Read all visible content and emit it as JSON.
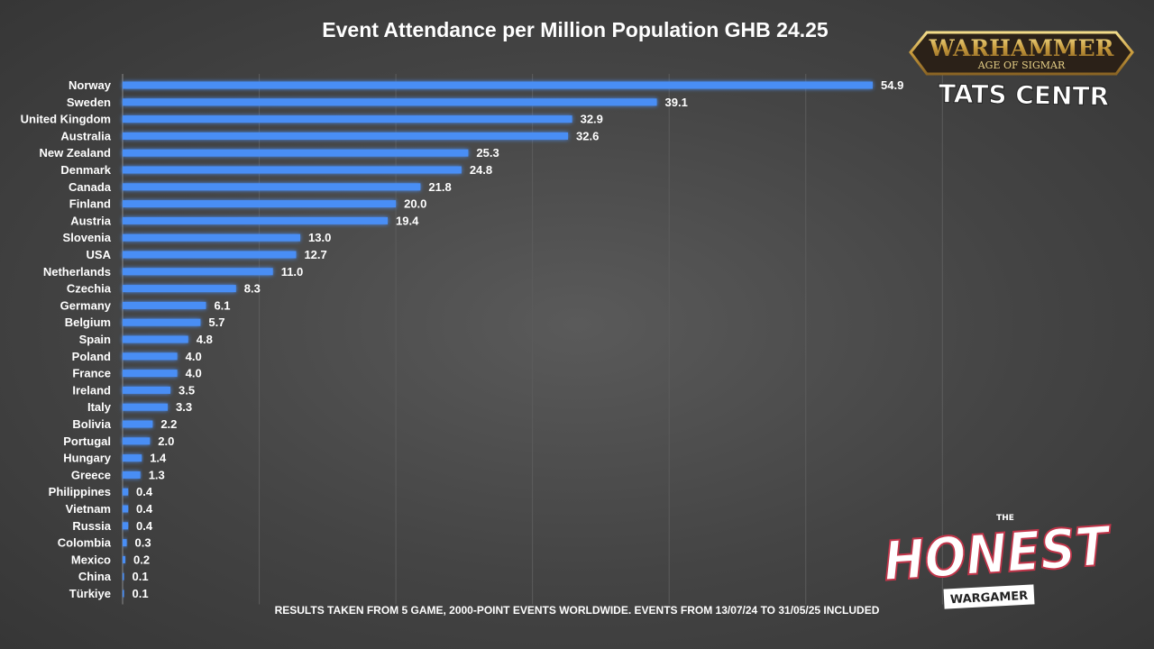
{
  "chart_data": {
    "type": "bar",
    "orientation": "horizontal",
    "title": "Event Attendance per Million Population GHB 24.25",
    "xlabel": "",
    "ylabel": "",
    "xlim": [
      0,
      60
    ],
    "grid": true,
    "bar_color": "#4a8ef5",
    "categories": [
      "Norway",
      "Sweden",
      "United Kingdom",
      "Australia",
      "New Zealand",
      "Denmark",
      "Canada",
      "Finland",
      "Austria",
      "Slovenia",
      "USA",
      "Netherlands",
      "Czechia",
      "Germany",
      "Belgium",
      "Spain",
      "Poland",
      "France",
      "Ireland",
      "Italy",
      "Bolivia",
      "Portugal",
      "Hungary",
      "Greece",
      "Philippines",
      "Vietnam",
      "Russia",
      "Colombia",
      "Mexico",
      "China",
      "Türkiye"
    ],
    "values": [
      54.9,
      39.1,
      32.9,
      32.6,
      25.3,
      24.8,
      21.8,
      20.0,
      19.4,
      13.0,
      12.7,
      11.0,
      8.3,
      6.1,
      5.7,
      4.8,
      4.0,
      4.0,
      3.5,
      3.3,
      2.2,
      2.0,
      1.4,
      1.3,
      0.4,
      0.4,
      0.4,
      0.3,
      0.2,
      0.1,
      0.1
    ],
    "value_labels": [
      "54.9",
      "39.1",
      "32.9",
      "32.6",
      "25.3",
      "24.8",
      "21.8",
      "20.0",
      "19.4",
      "13.0",
      "12.7",
      "11.0",
      "8.3",
      "6.1",
      "5.7",
      "4.8",
      "4.0",
      "4.0",
      "3.5",
      "3.3",
      "2.2",
      "2.0",
      "1.4",
      "1.3",
      "0.4",
      "0.4",
      "0.4",
      "0.3",
      "0.2",
      "0.1",
      "0.1"
    ]
  },
  "footnote": "RESULTS TAKEN FROM 5 GAME, 2000-POINT EVENTS WORLDWIDE. EVENTS FROM 13/07/24 TO 31/05/25 INCLUDED",
  "logos": {
    "warhammer_top": "WARHAMMER",
    "warhammer_sub": "AGE OF SIGMAR",
    "stats_centre": "STATS CENTRE",
    "honest_the": "THE",
    "honest_main": "HONEST",
    "honest_sub": "WARGAMER"
  }
}
